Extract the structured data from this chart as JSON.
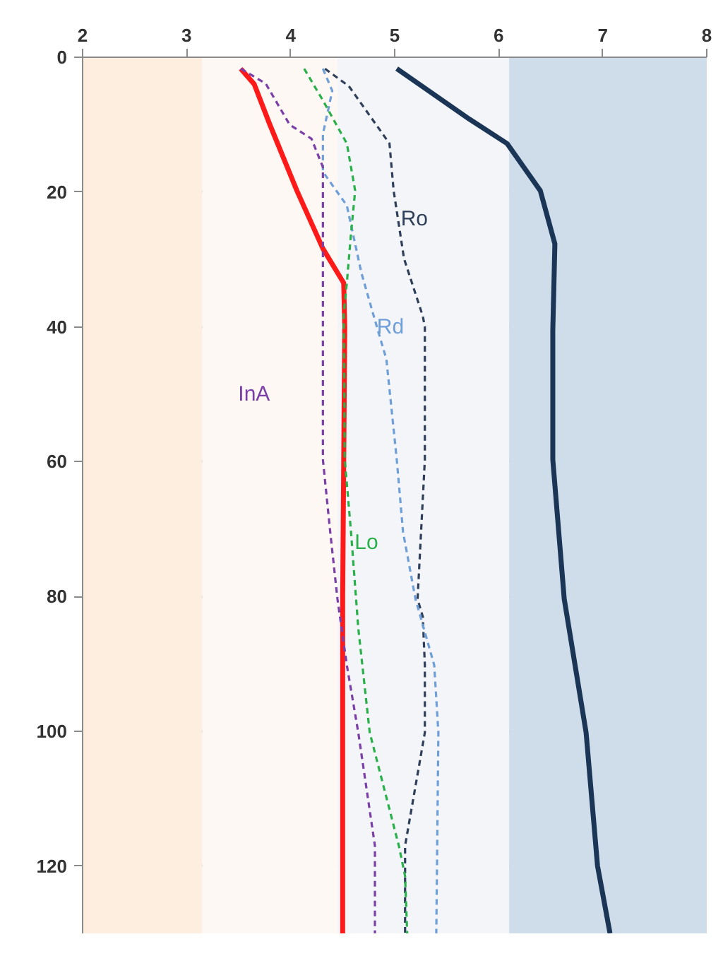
{
  "chart_data": {
    "type": "line",
    "xlim": [
      2,
      8
    ],
    "ylim": [
      130,
      0
    ],
    "xticks": [
      2,
      3,
      4,
      5,
      6,
      7,
      8
    ],
    "yticks": [
      0,
      20,
      40,
      60,
      80,
      100,
      120
    ],
    "grid": "y",
    "bands": [
      {
        "axis": "x",
        "from": 2,
        "to": 3.15,
        "color": "#fdeee0"
      },
      {
        "axis": "x",
        "from": 3.15,
        "to": 4.45,
        "color": "#fdf8f3"
      },
      {
        "axis": "x",
        "from": 4.45,
        "to": 6.1,
        "color": "#f3f5f9"
      },
      {
        "axis": "x",
        "from": 6.1,
        "to": 8,
        "color": "#cfdcea"
      }
    ],
    "series": [
      {
        "color": "#ff1a1a",
        "line_style": "solid",
        "x": [
          3.52,
          3.65,
          3.8,
          4.06,
          4.31,
          4.51,
          4.52,
          4.51,
          4.5,
          4.5,
          4.5
        ],
        "values": [
          1.7,
          4,
          10,
          19.8,
          28.4,
          33.5,
          40,
          60,
          80,
          100,
          130
        ]
      },
      {
        "color": "#1b3556",
        "line_style": "solid",
        "x": [
          5.02,
          5.72,
          6.08,
          6.4,
          6.54,
          6.52,
          6.52,
          6.63,
          6.84,
          6.95,
          7.07
        ],
        "values": [
          1.7,
          9.2,
          12.8,
          19.8,
          27.7,
          40.5,
          59.7,
          80.4,
          100.2,
          120,
          130
        ]
      },
      {
        "name": "Ro",
        "color": "#2f3f5a",
        "line_style": "dashed",
        "x": [
          4.33,
          4.56,
          4.95,
          4.99,
          5.09,
          5.27,
          5.29,
          5.29,
          5.22,
          5.27,
          5.29,
          5.29,
          5.1,
          5.1
        ],
        "values": [
          1.7,
          4.3,
          12.8,
          19.8,
          29.9,
          38.4,
          40,
          59.7,
          80.4,
          83,
          90.2,
          100.2,
          117,
          130
        ]
      },
      {
        "name": "Rd",
        "color": "#6f9fd8",
        "line_style": "dashed",
        "x": [
          4.31,
          4.4,
          4.31,
          4.31,
          4.54,
          4.68,
          4.81,
          4.92,
          5.02,
          5.08,
          5.2,
          5.38,
          5.42,
          5.4
        ],
        "values": [
          1.7,
          5,
          11.4,
          17,
          22,
          32,
          39,
          44.8,
          59.7,
          70.4,
          80.4,
          90.2,
          100.2,
          130
        ]
      },
      {
        "name": "InA",
        "color": "#7b3fa8",
        "line_style": "dashed",
        "x": [
          3.52,
          3.76,
          3.99,
          4.2,
          4.31,
          4.31,
          4.31,
          4.31,
          4.38,
          4.45,
          4.54,
          4.65,
          4.81,
          4.81
        ],
        "values": [
          1.7,
          3.9,
          10,
          12.1,
          16.3,
          24.9,
          40,
          59.7,
          70.4,
          80.4,
          90.2,
          100.2,
          117,
          130
        ]
      },
      {
        "name": "Lo",
        "color": "#2ab04a",
        "line_style": "dashed",
        "x": [
          4.13,
          4.31,
          4.54,
          4.62,
          4.58,
          4.54,
          4.51,
          4.52,
          4.58,
          4.65,
          4.76,
          5.04,
          5.1,
          5.12
        ],
        "values": [
          1.7,
          6.4,
          12.8,
          19.8,
          26.2,
          33.5,
          38,
          59.7,
          70.4,
          84.7,
          100.2,
          117,
          121.5,
          130
        ]
      }
    ]
  }
}
